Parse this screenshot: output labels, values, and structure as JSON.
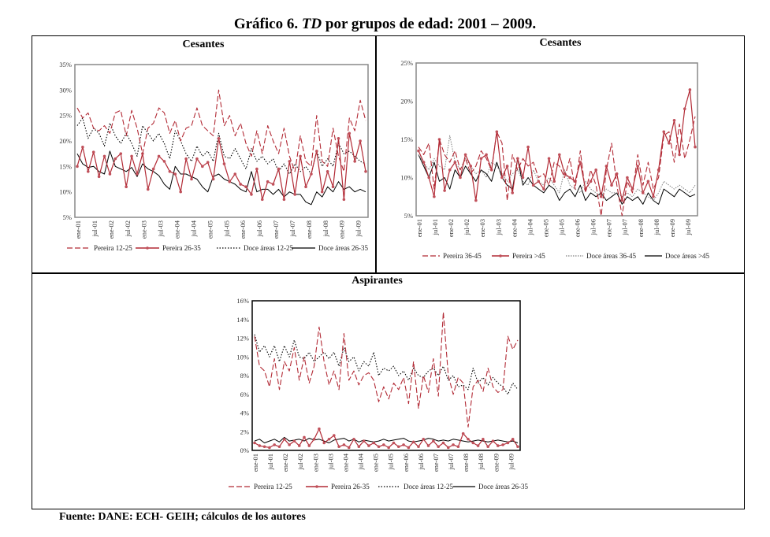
{
  "title_prefix": "Gráfico 6. ",
  "title_italic": "TD",
  "title_suffix": " por grupos de edad: 2001 – 2009.",
  "source": "Fuente: DANE: ECH- GEIH; cálculos de los autores",
  "colors": {
    "red": "#b22a35",
    "red_marker": "#c0505a",
    "black": "#000000",
    "gray": "#808080",
    "frame": "#888888"
  },
  "chart_data": [
    {
      "id": "cesantes-jovenes",
      "type": "line",
      "title": "Cesantes",
      "ylim": [
        0.05,
        0.35
      ],
      "yticks": [
        0.05,
        0.1,
        0.15,
        0.2,
        0.25,
        0.3,
        0.35
      ],
      "ytick_labels": [
        "5%",
        "10%",
        "15%",
        "20%",
        "25%",
        "30%",
        "35%"
      ],
      "x_tick_labels": [
        "ene-01",
        "jul-01",
        "ene-02",
        "jul-02",
        "ene-03",
        "jul-03",
        "ene-04",
        "jul-04",
        "ene-05",
        "jul-05",
        "ene-06",
        "jul-06",
        "ene-07",
        "jul-07",
        "ene-08",
        "jul-08",
        "ene-09",
        "jul-09"
      ],
      "legend_position": "bottom",
      "series": [
        {
          "name": "Pereira 12-25",
          "style": "dashed-red",
          "values": [
            0.265,
            0.245,
            0.255,
            0.225,
            0.22,
            0.23,
            0.215,
            0.255,
            0.26,
            0.21,
            0.26,
            0.225,
            0.175,
            0.225,
            0.235,
            0.265,
            0.255,
            0.215,
            0.24,
            0.2,
            0.225,
            0.23,
            0.265,
            0.23,
            0.22,
            0.21,
            0.3,
            0.23,
            0.25,
            0.21,
            0.235,
            0.195,
            0.17,
            0.22,
            0.175,
            0.23,
            0.2,
            0.175,
            0.225,
            0.17,
            0.14,
            0.21,
            0.16,
            0.15,
            0.25,
            0.16,
            0.15,
            0.225,
            0.17,
            0.14,
            0.245,
            0.22,
            0.28,
            0.24
          ]
        },
        {
          "name": "Pereira 26-35",
          "style": "solid-red-markers",
          "values": [
            0.15,
            0.188,
            0.14,
            0.178,
            0.13,
            0.17,
            0.135,
            0.165,
            0.175,
            0.11,
            0.17,
            0.135,
            0.175,
            0.105,
            0.145,
            0.17,
            0.16,
            0.14,
            0.135,
            0.1,
            0.165,
            0.125,
            0.165,
            0.15,
            0.158,
            0.125,
            0.205,
            0.155,
            0.12,
            0.135,
            0.115,
            0.11,
            0.095,
            0.145,
            0.085,
            0.12,
            0.115,
            0.145,
            0.085,
            0.16,
            0.095,
            0.17,
            0.11,
            0.135,
            0.18,
            0.1,
            0.14,
            0.11,
            0.205,
            0.085,
            0.215,
            0.16,
            0.2,
            0.14
          ]
        },
        {
          "name": "Doce áreas 12-25",
          "style": "dotted-black",
          "values": [
            0.23,
            0.245,
            0.205,
            0.225,
            0.215,
            0.19,
            0.235,
            0.21,
            0.195,
            0.215,
            0.195,
            0.17,
            0.23,
            0.215,
            0.2,
            0.215,
            0.195,
            0.165,
            0.22,
            0.2,
            0.175,
            0.16,
            0.19,
            0.17,
            0.18,
            0.16,
            0.215,
            0.17,
            0.165,
            0.185,
            0.165,
            0.145,
            0.185,
            0.16,
            0.17,
            0.155,
            0.165,
            0.14,
            0.155,
            0.135,
            0.155,
            0.14,
            0.15,
            0.135,
            0.18,
            0.15,
            0.165,
            0.15,
            0.195,
            0.175,
            0.18,
            0.17,
            0.16,
            0.155
          ]
        },
        {
          "name": "Doce áreas 26-35",
          "style": "solid-black",
          "values": [
            0.175,
            0.155,
            0.148,
            0.15,
            0.14,
            0.135,
            0.18,
            0.15,
            0.145,
            0.14,
            0.148,
            0.13,
            0.155,
            0.145,
            0.14,
            0.132,
            0.115,
            0.105,
            0.15,
            0.135,
            0.135,
            0.13,
            0.125,
            0.11,
            0.1,
            0.13,
            0.135,
            0.125,
            0.12,
            0.115,
            0.105,
            0.1,
            0.14,
            0.1,
            0.105,
            0.105,
            0.095,
            0.105,
            0.09,
            0.1,
            0.095,
            0.095,
            0.08,
            0.075,
            0.1,
            0.09,
            0.11,
            0.1,
            0.12,
            0.105,
            0.11,
            0.1,
            0.105,
            0.1
          ]
        }
      ]
    },
    {
      "id": "cesantes-adultos",
      "type": "line",
      "title": "Cesantes",
      "ylim": [
        0.05,
        0.25
      ],
      "yticks": [
        0.05,
        0.1,
        0.15,
        0.2,
        0.25
      ],
      "ytick_labels": [
        "5%",
        "10%",
        "15%",
        "20%",
        "25%"
      ],
      "x_tick_labels": [
        "ene-01",
        "jul-01",
        "ene-02",
        "jul-02",
        "ene-03",
        "jul-03",
        "ene-04",
        "jul-04",
        "ene-05",
        "jul-05",
        "ene-06",
        "jul-06",
        "ene-07",
        "jul-07",
        "ene-08",
        "jul-08",
        "ene-09",
        "jul-09"
      ],
      "legend_position": "bottom",
      "series": [
        {
          "name": "Pereira 36-45",
          "style": "dashed-red",
          "values": [
            0.14,
            0.13,
            0.145,
            0.085,
            0.15,
            0.13,
            0.12,
            0.135,
            0.11,
            0.125,
            0.105,
            0.115,
            0.135,
            0.125,
            0.11,
            0.16,
            0.145,
            0.07,
            0.13,
            0.11,
            0.125,
            0.115,
            0.12,
            0.1,
            0.105,
            0.09,
            0.12,
            0.115,
            0.1,
            0.125,
            0.085,
            0.135,
            0.08,
            0.11,
            0.09,
            0.05,
            0.11,
            0.145,
            0.09,
            0.05,
            0.095,
            0.08,
            0.13,
            0.09,
            0.12,
            0.085,
            0.1,
            0.155,
            0.16,
            0.12,
            0.17,
            0.125,
            0.15,
            0.18
          ]
        },
        {
          "name": "Pereira >45",
          "style": "solid-red-markers",
          "values": [
            0.135,
            0.12,
            0.1,
            0.075,
            0.15,
            0.083,
            0.11,
            0.12,
            0.1,
            0.13,
            0.115,
            0.07,
            0.125,
            0.13,
            0.11,
            0.16,
            0.1,
            0.115,
            0.08,
            0.125,
            0.1,
            0.14,
            0.09,
            0.095,
            0.085,
            0.125,
            0.095,
            0.13,
            0.105,
            0.1,
            0.095,
            0.12,
            0.085,
            0.095,
            0.11,
            0.075,
            0.115,
            0.09,
            0.105,
            0.07,
            0.1,
            0.085,
            0.115,
            0.08,
            0.095,
            0.075,
            0.11,
            0.16,
            0.145,
            0.175,
            0.13,
            0.19,
            0.215,
            0.14
          ]
        },
        {
          "name": "Doce áreas 36-45",
          "style": "dotted-gray",
          "values": [
            0.13,
            0.12,
            0.11,
            0.125,
            0.115,
            0.11,
            0.155,
            0.12,
            0.11,
            0.125,
            0.115,
            0.105,
            0.11,
            0.1,
            0.12,
            0.115,
            0.105,
            0.095,
            0.105,
            0.11,
            0.095,
            0.09,
            0.11,
            0.095,
            0.09,
            0.1,
            0.09,
            0.08,
            0.11,
            0.09,
            0.085,
            0.08,
            0.095,
            0.085,
            0.08,
            0.075,
            0.085,
            0.08,
            0.08,
            0.075,
            0.08,
            0.075,
            0.085,
            0.08,
            0.075,
            0.07,
            0.08,
            0.095,
            0.09,
            0.085,
            0.09,
            0.085,
            0.08,
            0.09
          ]
        },
        {
          "name": "Doce áreas >45",
          "style": "solid-black",
          "values": [
            0.13,
            0.115,
            0.1,
            0.12,
            0.095,
            0.1,
            0.085,
            0.11,
            0.1,
            0.115,
            0.105,
            0.095,
            0.11,
            0.105,
            0.095,
            0.12,
            0.1,
            0.09,
            0.085,
            0.125,
            0.09,
            0.1,
            0.09,
            0.085,
            0.08,
            0.09,
            0.085,
            0.07,
            0.08,
            0.085,
            0.075,
            0.09,
            0.07,
            0.08,
            0.075,
            0.08,
            0.07,
            0.075,
            0.08,
            0.065,
            0.075,
            0.07,
            0.075,
            0.065,
            0.08,
            0.07,
            0.065,
            0.085,
            0.08,
            0.075,
            0.085,
            0.08,
            0.075,
            0.078
          ]
        }
      ]
    },
    {
      "id": "aspirantes",
      "type": "line",
      "title": "Aspirantes",
      "ylim": [
        0,
        0.16
      ],
      "yticks": [
        0,
        0.02,
        0.04,
        0.06,
        0.08,
        0.1,
        0.12,
        0.14,
        0.16
      ],
      "ytick_labels": [
        "0%",
        "2%",
        "4%",
        "6%",
        "8%",
        "10%",
        "12%",
        "14%",
        "16%"
      ],
      "x_tick_labels": [
        "ene-01",
        "jul-01",
        "ene-02",
        "jul-02",
        "ene-03",
        "jul-03",
        "ene-04",
        "jul-04",
        "ene-05",
        "jul-05",
        "ene-06",
        "jul-06",
        "ene-07",
        "jul-07",
        "ene-08",
        "jul-08",
        "ene-09",
        "jul-09"
      ],
      "legend_position": "bottom",
      "series": [
        {
          "name": "Pereira 12-25",
          "style": "dashed-red",
          "values": [
            0.122,
            0.09,
            0.085,
            0.068,
            0.098,
            0.065,
            0.095,
            0.085,
            0.11,
            0.075,
            0.1,
            0.072,
            0.09,
            0.132,
            0.095,
            0.07,
            0.085,
            0.065,
            0.125,
            0.075,
            0.085,
            0.07,
            0.08,
            0.083,
            0.075,
            0.052,
            0.068,
            0.055,
            0.072,
            0.065,
            0.078,
            0.05,
            0.095,
            0.045,
            0.08,
            0.062,
            0.098,
            0.058,
            0.148,
            0.08,
            0.06,
            0.078,
            0.072,
            0.025,
            0.068,
            0.075,
            0.063,
            0.088,
            0.068,
            0.062,
            0.065,
            0.122,
            0.108,
            0.118
          ]
        },
        {
          "name": "Pereira 26-35",
          "style": "solid-red-markers",
          "values": [
            0.008,
            0.005,
            0.004,
            0.003,
            0.006,
            0.004,
            0.012,
            0.006,
            0.01,
            0.005,
            0.014,
            0.005,
            0.012,
            0.023,
            0.008,
            0.012,
            0.016,
            0.004,
            0.006,
            0.003,
            0.012,
            0.004,
            0.01,
            0.005,
            0.008,
            0.004,
            0.006,
            0.003,
            0.008,
            0.004,
            0.006,
            0.003,
            0.009,
            0.004,
            0.012,
            0.005,
            0.01,
            0.004,
            0.008,
            0.003,
            0.006,
            0.004,
            0.018,
            0.012,
            0.008,
            0.005,
            0.012,
            0.004,
            0.01,
            0.005,
            0.006,
            0.008,
            0.012,
            0.004
          ]
        },
        {
          "name": "Doce áreas 12-25",
          "style": "dotted-black",
          "values": [
            0.124,
            0.105,
            0.112,
            0.1,
            0.112,
            0.095,
            0.112,
            0.1,
            0.118,
            0.1,
            0.098,
            0.105,
            0.095,
            0.1,
            0.105,
            0.098,
            0.105,
            0.09,
            0.11,
            0.095,
            0.1,
            0.085,
            0.095,
            0.09,
            0.105,
            0.08,
            0.088,
            0.085,
            0.09,
            0.08,
            0.085,
            0.075,
            0.088,
            0.08,
            0.078,
            0.085,
            0.088,
            0.08,
            0.09,
            0.075,
            0.08,
            0.068,
            0.07,
            0.065,
            0.088,
            0.072,
            0.078,
            0.07,
            0.078,
            0.072,
            0.068,
            0.06,
            0.072,
            0.065
          ]
        },
        {
          "name": "Doce áreas 26-35",
          "style": "solid-black",
          "values": [
            0.01,
            0.012,
            0.008,
            0.01,
            0.012,
            0.009,
            0.014,
            0.01,
            0.011,
            0.012,
            0.01,
            0.013,
            0.011,
            0.012,
            0.01,
            0.008,
            0.011,
            0.012,
            0.013,
            0.01,
            0.012,
            0.009,
            0.011,
            0.01,
            0.009,
            0.01,
            0.012,
            0.01,
            0.011,
            0.012,
            0.013,
            0.01,
            0.009,
            0.01,
            0.011,
            0.013,
            0.012,
            0.01,
            0.011,
            0.01,
            0.012,
            0.011,
            0.01,
            0.009,
            0.01,
            0.011,
            0.01,
            0.009,
            0.01,
            0.011,
            0.01,
            0.009,
            0.01,
            0.008
          ]
        }
      ]
    }
  ]
}
